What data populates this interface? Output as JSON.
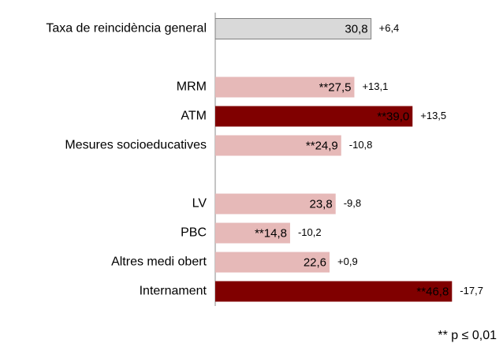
{
  "chart_data": {
    "type": "bar",
    "orientation": "horizontal",
    "categories": [
      "Taxa de reincidència general",
      null,
      "MRM",
      "ATM",
      "Mesures socioeducatives",
      null,
      "LV",
      "PBC",
      "Altres medi obert",
      "Internament"
    ],
    "values": [
      30.8,
      null,
      27.5,
      39.0,
      24.9,
      null,
      23.8,
      14.8,
      22.6,
      46.8
    ],
    "value_labels": [
      "30,8",
      null,
      "**27,5",
      "**39,0",
      "**24,9",
      null,
      "23,8",
      "**14,8",
      "22,6",
      "**46,8"
    ],
    "colors": [
      "#d9d9d9",
      null,
      "#e6b9b8",
      "#800000",
      "#e6b9b8",
      null,
      "#e6b9b8",
      "#e6b9b8",
      "#e6b9b8",
      "#800000"
    ],
    "differences": [
      6.4,
      null,
      13.1,
      13.5,
      -10.8,
      null,
      -9.8,
      -10.2,
      0.9,
      -17.7
    ],
    "difference_labels": [
      "+6,4",
      null,
      "+13,1",
      "+13,5",
      "-10,8",
      null,
      "-9,8",
      "-10,2",
      "+0,9",
      "-17,7"
    ],
    "xlim": [
      0,
      48
    ],
    "footnote": "** p ≤ 0,01"
  }
}
